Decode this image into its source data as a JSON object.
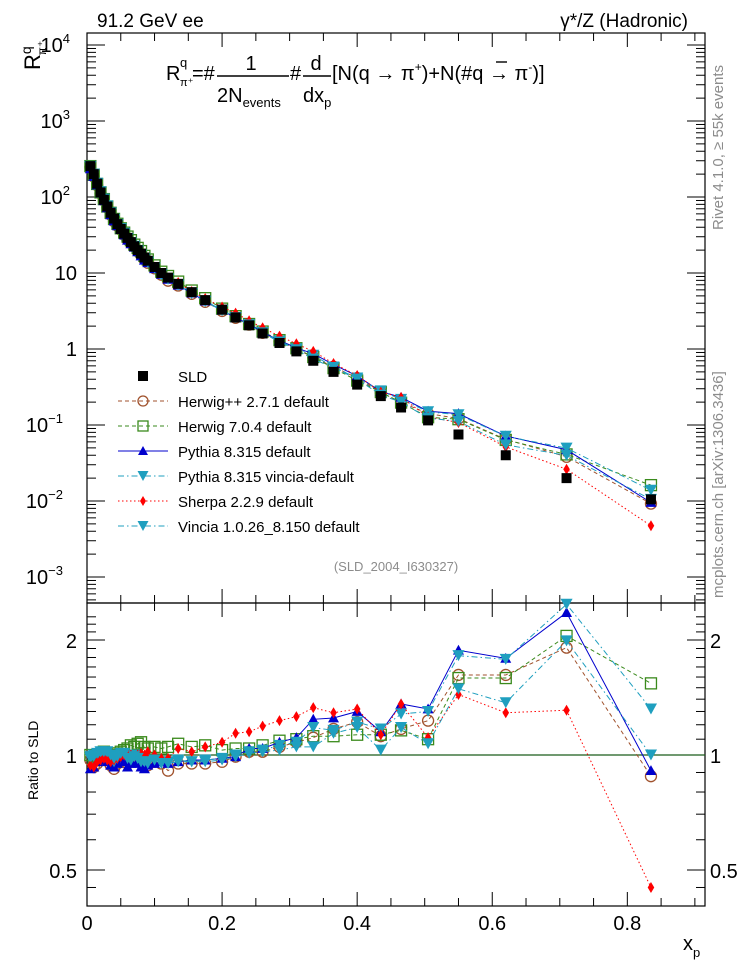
{
  "header": {
    "left": "91.2 GeV ee",
    "right": "γ*/Z (Hadronic)"
  },
  "side_labels": {
    "rivet": "Rivet 4.1.0, ≥ 55k events",
    "mcplots": "mcplots.cern.ch [arXiv:1306.3436]"
  },
  "chart_data": [
    {
      "type": "scatter",
      "panel": "main",
      "title": "R^q_π+ = 1/(2N_events) d/dx_p [N(q → π+) + N(q̄ → π-)]",
      "formula": {
        "lhs": "R",
        "lhs_sup": "q",
        "lhs_sub": "π⁺",
        "eq": "=#",
        "frac1_num": "1",
        "frac1_den": "2N",
        "frac1_den_sub": "events",
        "hash2": "#",
        "frac2_num": "d",
        "frac2_den": "dx",
        "frac2_den_sub": "p",
        "rest1": "[N(q → π",
        "rest1_sup": "+",
        "rest2": ")+N(#",
        "qbar": "q",
        "rest3": " → π",
        "rest3_sup": "-",
        "rest4": ")]"
      },
      "ylabel": "R",
      "ylabel_sup": "q",
      "ylabel_sub": "π⁺",
      "yscale": "log",
      "ylim": [
        0.0007,
        20000
      ],
      "xlim": [
        0,
        0.915
      ],
      "yticks": [
        {
          "v": 10000,
          "base": "10",
          "exp": "4"
        },
        {
          "v": 1000,
          "base": "10",
          "exp": "3"
        },
        {
          "v": 100,
          "base": "10",
          "exp": "2"
        },
        {
          "v": 10,
          "base": "10",
          "exp": ""
        },
        {
          "v": 1,
          "base": "1",
          "exp": ""
        },
        {
          "v": 0.1,
          "base": "10",
          "exp": "−1"
        },
        {
          "v": 0.01,
          "base": "10",
          "exp": "−2"
        },
        {
          "v": 0.001,
          "base": "10",
          "exp": "−3"
        }
      ],
      "reference_label": "(SLD_2004_I630327)",
      "legend_position": "middle-left",
      "x": [
        0.005,
        0.01,
        0.015,
        0.02,
        0.025,
        0.03,
        0.035,
        0.04,
        0.045,
        0.05,
        0.055,
        0.06,
        0.065,
        0.07,
        0.075,
        0.08,
        0.085,
        0.09,
        0.1,
        0.11,
        0.12,
        0.135,
        0.155,
        0.175,
        0.2,
        0.22,
        0.24,
        0.26,
        0.285,
        0.31,
        0.335,
        0.365,
        0.4,
        0.435,
        0.465,
        0.505,
        0.55,
        0.62,
        0.71,
        0.835
      ],
      "series": [
        {
          "name": "SLD",
          "key": "sld",
          "color": "#000000",
          "marker": "square-filled",
          "line": "none",
          "values": [
            255,
            200,
            150,
            115,
            92,
            75,
            62,
            52,
            44,
            38,
            33,
            29,
            25.5,
            22.5,
            20,
            18,
            16,
            14.5,
            12,
            10,
            8.7,
            7.2,
            5.6,
            4.4,
            3.3,
            2.6,
            2.05,
            1.6,
            1.2,
            0.93,
            0.7,
            0.5,
            0.34,
            0.24,
            0.17,
            0.115,
            0.075,
            0.04,
            0.02,
            0.0105
          ]
        },
        {
          "name": "Herwig++ 2.7.1 default",
          "key": "herwigpp",
          "color": "#a0522d",
          "marker": "circle-open",
          "line": "dashed",
          "ratio": [
            0.97,
            0.93,
            0.95,
            0.97,
            0.98,
            0.97,
            0.94,
            0.92,
            0.95,
            0.98,
            0.96,
            0.95,
            0.97,
            0.99,
            0.97,
            0.96,
            0.95,
            0.94,
            0.96,
            0.95,
            0.91,
            0.95,
            0.95,
            0.95,
            0.96,
            0.99,
            1.02,
            1.02,
            1.05,
            1.08,
            1.11,
            1.17,
            1.22,
            1.12,
            1.17,
            1.23,
            1.62,
            1.62,
            1.91,
            0.88
          ]
        },
        {
          "name": "Herwig 7.0.4 default",
          "key": "herwig7",
          "color": "#3a8a1c",
          "marker": "square-open",
          "line": "dashed",
          "ratio": [
            1.0,
            0.98,
            0.99,
            1.0,
            1.02,
            1.0,
            1.0,
            0.99,
            1.01,
            1.02,
            1.03,
            1.04,
            1.06,
            1.05,
            1.07,
            1.08,
            1.05,
            1.04,
            1.05,
            1.04,
            1.05,
            1.07,
            1.05,
            1.06,
            1.03,
            1.04,
            1.04,
            1.06,
            1.09,
            1.1,
            1.12,
            1.12,
            1.13,
            1.13,
            1.16,
            1.1,
            1.59,
            1.59,
            2.05,
            1.54
          ]
        },
        {
          "name": "Pythia 8.315 default",
          "key": "pythia",
          "color": "#0000cd",
          "marker": "triangle-up",
          "line": "solid",
          "ratio": [
            0.92,
            0.93,
            0.96,
            0.98,
            0.97,
            0.96,
            0.94,
            0.93,
            0.95,
            0.98,
            0.96,
            0.93,
            0.95,
            0.97,
            0.95,
            0.93,
            0.92,
            0.94,
            0.95,
            0.96,
            0.95,
            0.96,
            0.97,
            0.97,
            0.98,
            0.99,
            1.04,
            1.04,
            1.08,
            1.11,
            1.24,
            1.25,
            1.3,
            1.15,
            1.36,
            1.32,
            1.88,
            1.79,
            2.36,
            0.91
          ]
        },
        {
          "name": "Pythia 8.315 vincia-default",
          "key": "vincia_p8",
          "color": "#1f9fbf",
          "marker": "triangle-down",
          "line": "dashdot",
          "ratio": [
            0.98,
            0.99,
            1.0,
            1.01,
            1.01,
            1.0,
            0.98,
            0.96,
            0.98,
            1.0,
            1.0,
            0.98,
            0.97,
            1.0,
            0.98,
            0.96,
            0.97,
            0.96,
            0.97,
            0.96,
            0.96,
            0.97,
            0.96,
            0.97,
            0.98,
            1.0,
            1.02,
            1.03,
            1.06,
            1.08,
            1.18,
            1.16,
            1.22,
            1.17,
            1.28,
            1.3,
            1.82,
            1.78,
            2.48,
            1.32
          ]
        },
        {
          "name": "Sherpa 2.2.9 default",
          "key": "sherpa",
          "color": "#ff0000",
          "marker": "diamond",
          "line": "dotted",
          "ratio": [
            0.94,
            0.93,
            0.96,
            0.97,
            0.98,
            0.97,
            0.96,
            0.97,
            0.98,
            0.99,
            1.0,
            1.01,
            1.0,
            0.99,
            1.0,
            1.01,
            1.0,
            1.02,
            1.0,
            0.98,
            0.98,
            1.04,
            1.02,
            1.05,
            1.08,
            1.14,
            1.15,
            1.19,
            1.23,
            1.26,
            1.33,
            1.29,
            1.32,
            1.13,
            1.36,
            1.11,
            1.44,
            1.29,
            1.31,
            0.45
          ]
        },
        {
          "name": "Vincia 1.0.26_8.150 default",
          "key": "vincia",
          "color": "#1f9fbf",
          "marker": "triangle-down",
          "line": "dashdot",
          "ratio": [
            0.99,
            1.0,
            1.01,
            1.02,
            1.02,
            1.02,
            1.0,
            0.98,
            0.99,
            1.01,
            1.01,
            0.98,
            0.97,
            0.99,
            0.98,
            0.96,
            0.96,
            0.95,
            0.97,
            0.95,
            0.95,
            0.96,
            0.96,
            0.96,
            0.97,
            0.99,
            1.01,
            1.02,
            1.03,
            1.05,
            1.05,
            1.14,
            1.18,
            1.03,
            1.18,
            1.07,
            1.49,
            1.37,
            1.99,
            1.0
          ]
        }
      ]
    },
    {
      "type": "scatter",
      "panel": "ratio",
      "ylabel": "Ratio to SLD",
      "xlabel": "x",
      "xlabel_sub": "p",
      "yscale": "log",
      "ylim": [
        0.43,
        2.35
      ],
      "xlim": [
        0,
        0.915
      ],
      "yticks": [
        {
          "v": 2,
          "label": "2"
        },
        {
          "v": 1,
          "label": "1"
        },
        {
          "v": 0.5,
          "label": "0.5"
        }
      ],
      "xticks": [
        {
          "v": 0,
          "label": "0"
        },
        {
          "v": 0.2,
          "label": "0.2"
        },
        {
          "v": 0.4,
          "label": "0.4"
        },
        {
          "v": 0.6,
          "label": "0.6"
        },
        {
          "v": 0.8,
          "label": "0.8"
        }
      ],
      "reference_line": 1
    }
  ]
}
